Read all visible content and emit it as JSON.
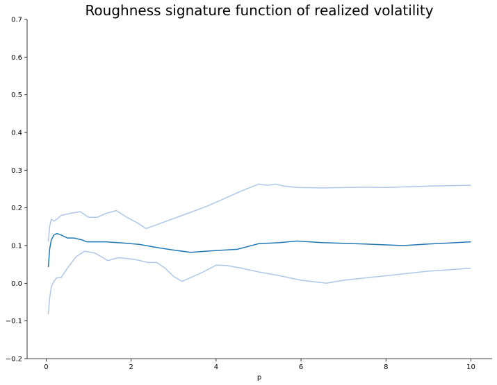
{
  "chart_data": {
    "type": "line",
    "title": "Roughness signature function of realized volatility",
    "xlabel": "p",
    "ylabel": "",
    "xlim": [
      -0.45,
      10.5
    ],
    "ylim": [
      -0.2,
      0.7
    ],
    "xticks": [
      0,
      2,
      4,
      6,
      8,
      10
    ],
    "yticks": [
      -0.2,
      -0.1,
      0.0,
      0.1,
      0.2,
      0.3,
      0.4,
      0.5,
      0.6,
      0.7
    ],
    "xtick_labels": [
      "0",
      "2",
      "4",
      "6",
      "8",
      "10"
    ],
    "ytick_labels": [
      "−0.2",
      "−0.1",
      "0.0",
      "0.1",
      "0.2",
      "0.3",
      "0.4",
      "0.5",
      "0.6",
      "0.7"
    ],
    "grid": false,
    "series": [
      {
        "role": "upper-band",
        "color": "#aec7e8",
        "points": [
          [
            0.05,
            0.11
          ],
          [
            0.08,
            0.15
          ],
          [
            0.12,
            0.17
          ],
          [
            0.18,
            0.165
          ],
          [
            0.25,
            0.17
          ],
          [
            0.35,
            0.18
          ],
          [
            0.55,
            0.185
          ],
          [
            0.8,
            0.19
          ],
          [
            1.0,
            0.175
          ],
          [
            1.2,
            0.175
          ],
          [
            1.4,
            0.185
          ],
          [
            1.65,
            0.193
          ],
          [
            1.9,
            0.175
          ],
          [
            2.15,
            0.16
          ],
          [
            2.35,
            0.145
          ],
          [
            2.6,
            0.155
          ],
          [
            3.2,
            0.18
          ],
          [
            3.8,
            0.205
          ],
          [
            4.2,
            0.225
          ],
          [
            4.6,
            0.245
          ],
          [
            5.0,
            0.263
          ],
          [
            5.2,
            0.26
          ],
          [
            5.4,
            0.263
          ],
          [
            5.6,
            0.258
          ],
          [
            5.9,
            0.254
          ],
          [
            6.5,
            0.253
          ],
          [
            7.5,
            0.255
          ],
          [
            8.0,
            0.254
          ],
          [
            8.5,
            0.256
          ],
          [
            9.0,
            0.258
          ],
          [
            10.0,
            0.26
          ]
        ]
      },
      {
        "role": "estimate",
        "color": "#1f77b4",
        "points": [
          [
            0.05,
            0.043
          ],
          [
            0.08,
            0.09
          ],
          [
            0.12,
            0.115
          ],
          [
            0.18,
            0.128
          ],
          [
            0.25,
            0.132
          ],
          [
            0.35,
            0.128
          ],
          [
            0.5,
            0.12
          ],
          [
            0.65,
            0.12
          ],
          [
            0.85,
            0.115
          ],
          [
            0.95,
            0.11
          ],
          [
            1.1,
            0.11
          ],
          [
            1.4,
            0.11
          ],
          [
            1.8,
            0.107
          ],
          [
            2.2,
            0.103
          ],
          [
            2.6,
            0.095
          ],
          [
            3.0,
            0.088
          ],
          [
            3.4,
            0.082
          ],
          [
            4.0,
            0.087
          ],
          [
            4.5,
            0.09
          ],
          [
            5.0,
            0.105
          ],
          [
            5.5,
            0.108
          ],
          [
            5.9,
            0.112
          ],
          [
            6.5,
            0.108
          ],
          [
            7.5,
            0.104
          ],
          [
            8.4,
            0.1
          ],
          [
            9.0,
            0.104
          ],
          [
            10.0,
            0.11
          ]
        ]
      },
      {
        "role": "lower-band",
        "color": "#aec7e8",
        "points": [
          [
            0.05,
            -0.082
          ],
          [
            0.08,
            -0.04
          ],
          [
            0.12,
            -0.01
          ],
          [
            0.18,
            0.005
          ],
          [
            0.25,
            0.015
          ],
          [
            0.35,
            0.015
          ],
          [
            0.5,
            0.04
          ],
          [
            0.7,
            0.07
          ],
          [
            0.9,
            0.085
          ],
          [
            1.15,
            0.08
          ],
          [
            1.45,
            0.06
          ],
          [
            1.7,
            0.068
          ],
          [
            2.1,
            0.063
          ],
          [
            2.4,
            0.055
          ],
          [
            2.6,
            0.055
          ],
          [
            2.8,
            0.04
          ],
          [
            3.0,
            0.018
          ],
          [
            3.2,
            0.005
          ],
          [
            3.4,
            0.015
          ],
          [
            3.7,
            0.03
          ],
          [
            4.0,
            0.048
          ],
          [
            4.25,
            0.047
          ],
          [
            4.6,
            0.04
          ],
          [
            5.0,
            0.03
          ],
          [
            5.5,
            0.02
          ],
          [
            6.0,
            0.008
          ],
          [
            6.6,
            0.0
          ],
          [
            7.0,
            0.008
          ],
          [
            8.0,
            0.02
          ],
          [
            9.0,
            0.032
          ],
          [
            10.0,
            0.04
          ]
        ]
      }
    ]
  }
}
